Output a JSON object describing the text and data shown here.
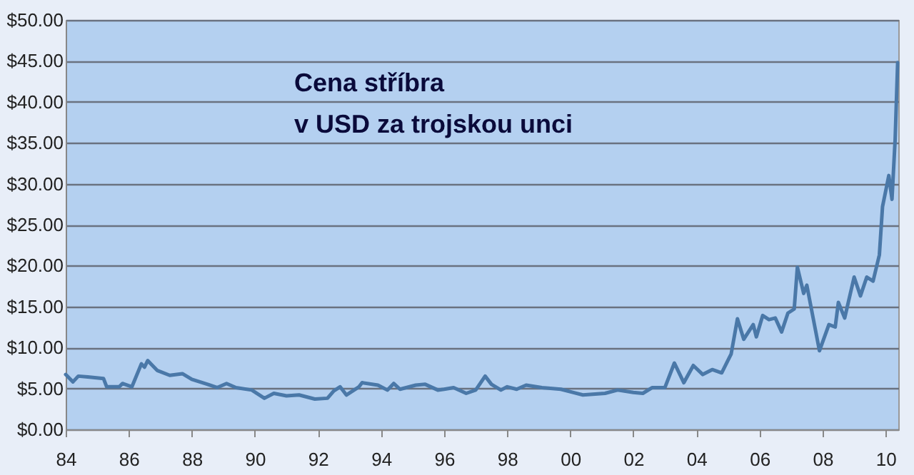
{
  "chart_data": {
    "type": "line",
    "title": "Cena stříbra\nv USD za trojskou unci",
    "x": [
      1984.0,
      1984.23,
      1984.4,
      1984.7,
      1985.2,
      1985.3,
      1985.7,
      1985.8,
      1986.1,
      1986.4,
      1986.5,
      1986.6,
      1986.9,
      1987.3,
      1987.7,
      1988.0,
      1988.5,
      1988.8,
      1989.1,
      1989.4,
      1989.9,
      1990.3,
      1990.6,
      1991.0,
      1991.4,
      1991.9,
      1992.3,
      1992.5,
      1992.7,
      1992.9,
      1993.3,
      1993.4,
      1993.9,
      1994.2,
      1994.4,
      1994.6,
      1995.1,
      1995.4,
      1995.8,
      1996.0,
      1996.3,
      1996.7,
      1997.0,
      1997.3,
      1997.5,
      1997.8,
      1998.0,
      1998.3,
      1998.6,
      1999.1,
      1999.7,
      2000.1,
      2000.4,
      2001.1,
      2001.5,
      2002.0,
      2002.3,
      2002.6,
      2003.0,
      2003.3,
      2003.6,
      2003.9,
      2004.2,
      2004.5,
      2004.8,
      2005.1,
      2005.3,
      2005.5,
      2005.8,
      2005.9,
      2006.1,
      2006.3,
      2006.5,
      2006.7,
      2006.9,
      2007.1,
      2007.2,
      2007.4,
      2007.5,
      2007.7,
      2007.9,
      2008.2,
      2008.4,
      2008.5,
      2008.7,
      2009.0,
      2009.2,
      2009.4,
      2009.6,
      2009.8,
      2009.9,
      2010.1,
      2010.2,
      2010.3,
      2010.38
    ],
    "series": [
      {
        "color": "#4a78a8",
        "values": [
          6.7,
          5.8,
          6.5,
          6.4,
          6.2,
          5.2,
          5.2,
          5.6,
          5.2,
          8.0,
          7.6,
          8.4,
          7.2,
          6.6,
          6.8,
          6.1,
          5.5,
          5.1,
          5.6,
          5.1,
          4.8,
          3.8,
          4.4,
          4.1,
          4.2,
          3.7,
          3.8,
          4.7,
          5.2,
          4.2,
          5.2,
          5.7,
          5.4,
          4.8,
          5.6,
          4.9,
          5.4,
          5.5,
          4.8,
          4.9,
          5.1,
          4.4,
          4.8,
          6.5,
          5.5,
          4.8,
          5.2,
          4.9,
          5.4,
          5.1,
          4.9,
          4.5,
          4.2,
          4.4,
          4.8,
          4.5,
          4.4,
          5.1,
          5.1,
          8.1,
          5.7,
          7.8,
          6.7,
          7.3,
          6.9,
          9.2,
          13.5,
          11.0,
          12.8,
          11.3,
          13.9,
          13.4,
          13.6,
          11.9,
          14.2,
          14.7,
          19.8,
          16.6,
          17.6,
          13.6,
          9.6,
          12.8,
          12.5,
          15.5,
          13.6,
          18.6,
          16.3,
          18.6,
          18.1,
          21.3,
          27.2,
          31.0,
          28.1,
          35.4,
          44.8
        ]
      }
    ],
    "xlim": [
      1984,
      2010.4
    ],
    "xticks": [
      {
        "value": 1984,
        "label": "84"
      },
      {
        "value": 1986,
        "label": "86"
      },
      {
        "value": 1988,
        "label": "88"
      },
      {
        "value": 1990,
        "label": "90"
      },
      {
        "value": 1992,
        "label": "92"
      },
      {
        "value": 1994,
        "label": "94"
      },
      {
        "value": 1996,
        "label": "96"
      },
      {
        "value": 1998,
        "label": "98"
      },
      {
        "value": 2000,
        "label": "00"
      },
      {
        "value": 2002,
        "label": "02"
      },
      {
        "value": 2004,
        "label": "04"
      },
      {
        "value": 2006,
        "label": "06"
      },
      {
        "value": 2008,
        "label": "08"
      },
      {
        "value": 2010,
        "label": "10"
      }
    ],
    "ylim": [
      0,
      50
    ],
    "yticks": [
      {
        "value": 0,
        "label": "$0.00"
      },
      {
        "value": 5,
        "label": "$5.00"
      },
      {
        "value": 10,
        "label": "$10.00"
      },
      {
        "value": 15,
        "label": "$15.00"
      },
      {
        "value": 20,
        "label": "$20.00"
      },
      {
        "value": 25,
        "label": "$25.00"
      },
      {
        "value": 30,
        "label": "$30.00"
      },
      {
        "value": 35,
        "label": "$35.00"
      },
      {
        "value": 40,
        "label": "$40.00"
      },
      {
        "value": 45,
        "label": "$45.00"
      },
      {
        "value": 50,
        "label": "$50.00"
      }
    ],
    "grid": "y",
    "legend": false,
    "marker": "none",
    "line_style": "solid"
  }
}
